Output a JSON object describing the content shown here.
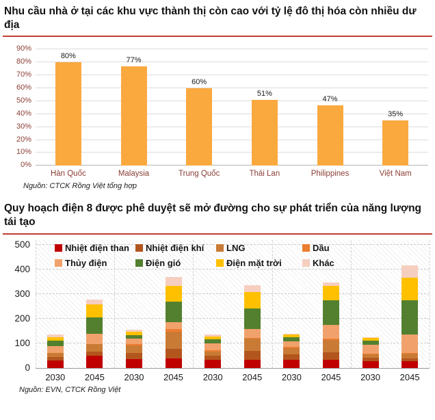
{
  "page": {
    "accent_color": "#C23B33"
  },
  "chart_data": [
    {
      "type": "bar",
      "title": "Nhu cầu nhà ở tại các khu vực thành thị còn cao với tỷ lệ đô thị hóa còn nhiều dư địa",
      "categories": [
        "Hàn Quốc",
        "Malaysia",
        "Trung Quốc",
        "Thái Lan",
        "Philippines",
        "Việt Nam"
      ],
      "values": [
        80,
        77,
        60,
        51,
        47,
        35
      ],
      "data_labels": [
        "80%",
        "77%",
        "60%",
        "51%",
        "47%",
        "35%"
      ],
      "xlabel": "",
      "ylabel": "",
      "ylim": [
        0,
        90
      ],
      "y_ticks": [
        {
          "label": "0%",
          "value": 0
        },
        {
          "label": "10%",
          "value": 10
        },
        {
          "label": "20%",
          "value": 20
        },
        {
          "label": "30%",
          "value": 30
        },
        {
          "label": "40%",
          "value": 40
        },
        {
          "label": "50%",
          "value": 50
        },
        {
          "label": "60%",
          "value": 60
        },
        {
          "label": "70%",
          "value": 70
        },
        {
          "label": "80%",
          "value": 80
        },
        {
          "label": "90%",
          "value": 90
        }
      ],
      "grid": true,
      "legend_position": "none",
      "bar_color": "#FAA93F",
      "axis_label_color": "#8A3D34",
      "source": "Nguồn: CTCK Rồng Việt tổng hợp"
    },
    {
      "type": "bar",
      "subtype": "stacked",
      "title": "Quy hoạch điện 8 được phê duyệt sẽ mở đường cho sự phát triển của năng lượng tái tạo",
      "categories": [
        "2030",
        "2045",
        "2030",
        "2045",
        "2030",
        "2045",
        "2030",
        "2045",
        "2030",
        "2045"
      ],
      "group_count": 5,
      "ylim": [
        0,
        500
      ],
      "y_ticks": [
        0,
        100,
        200,
        300,
        400,
        500
      ],
      "grid": "dashed",
      "legend_position": "top-inside",
      "series": [
        {
          "name": "Nhiệt điện than",
          "color": "#C00000",
          "values": [
            30,
            50,
            36,
            37,
            32,
            32,
            32,
            32,
            26,
            27
          ]
        },
        {
          "name": "Nhiệt điện khí",
          "color": "#B3561E",
          "values": [
            14,
            15,
            25,
            40,
            18,
            35,
            22,
            30,
            15,
            12
          ]
        },
        {
          "name": "LNG",
          "color": "#C97B35",
          "values": [
            15,
            30,
            30,
            70,
            15,
            50,
            25,
            50,
            13,
            18
          ]
        },
        {
          "name": "Dầu",
          "color": "#ED7D31",
          "values": [
            2,
            2,
            5,
            10,
            5,
            5,
            5,
            5,
            2,
            3
          ]
        },
        {
          "name": "Thủy điện",
          "color": "#F1A26C",
          "values": [
            28,
            40,
            22,
            28,
            30,
            35,
            24,
            57,
            38,
            76
          ]
        },
        {
          "name": "Điện gió",
          "color": "#53802F",
          "values": [
            22,
            68,
            15,
            82,
            15,
            83,
            17,
            99,
            16,
            137
          ]
        },
        {
          "name": "Điện mặt trời",
          "color": "#FFC000",
          "values": [
            14,
            52,
            14,
            64,
            11,
            66,
            11,
            60,
            12,
            92
          ]
        },
        {
          "name": "Khác",
          "color": "#F6CEBF",
          "values": [
            11,
            21,
            7,
            38,
            10,
            28,
            3,
            12,
            3,
            51
          ]
        }
      ],
      "source": "Nguồn: EVN, CTCK Rồng Việt"
    }
  ]
}
